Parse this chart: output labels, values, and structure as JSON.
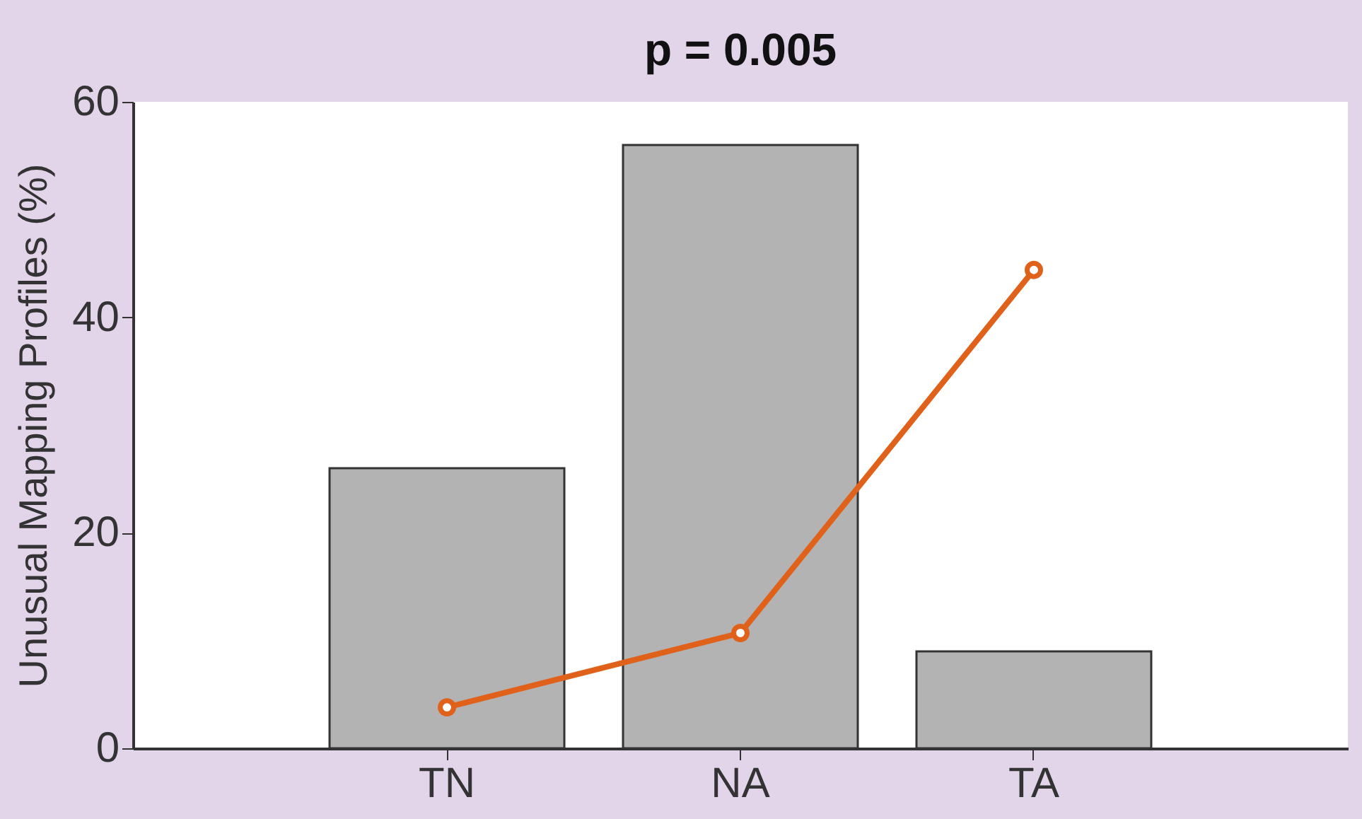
{
  "chart_data": {
    "type": "bar",
    "title": "p = 0.005",
    "ylabel": "Unusual Mapping Profiles (%)",
    "categories": [
      "TN",
      "NA",
      "TA"
    ],
    "series": [
      {
        "color": "#b3b3b3",
        "values": [
          26,
          56,
          9
        ]
      },
      {
        "type": "line",
        "color": "#e0611a",
        "values": [
          3.8,
          10.7,
          44.4
        ],
        "marker": "circle",
        "line_style": "solid"
      }
    ],
    "ylim": [
      0,
      60
    ],
    "yticks": [
      0,
      20,
      40,
      60
    ],
    "grid": false
  }
}
